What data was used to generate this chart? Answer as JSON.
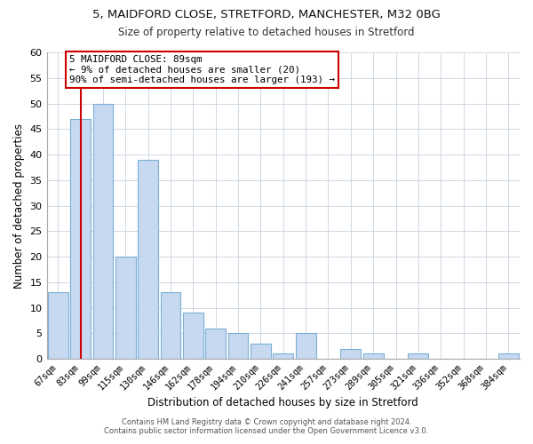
{
  "title1": "5, MAIDFORD CLOSE, STRETFORD, MANCHESTER, M32 0BG",
  "title2": "Size of property relative to detached houses in Stretford",
  "xlabel": "Distribution of detached houses by size in Stretford",
  "ylabel": "Number of detached properties",
  "bar_labels": [
    "67sqm",
    "83sqm",
    "99sqm",
    "115sqm",
    "130sqm",
    "146sqm",
    "162sqm",
    "178sqm",
    "194sqm",
    "210sqm",
    "226sqm",
    "241sqm",
    "257sqm",
    "273sqm",
    "289sqm",
    "305sqm",
    "321sqm",
    "336sqm",
    "352sqm",
    "368sqm",
    "384sqm"
  ],
  "bar_values": [
    13,
    47,
    50,
    20,
    39,
    13,
    9,
    6,
    5,
    3,
    1,
    5,
    0,
    2,
    1,
    0,
    1,
    0,
    0,
    0,
    1
  ],
  "bar_color": "#c6d9f0",
  "bar_edge_color": "#7bafd4",
  "vline_x": 1,
  "vline_color": "#cc0000",
  "ylim": [
    0,
    60
  ],
  "yticks": [
    0,
    5,
    10,
    15,
    20,
    25,
    30,
    35,
    40,
    45,
    50,
    55,
    60
  ],
  "annotation_line1": "5 MAIDFORD CLOSE: 89sqm",
  "annotation_line2": "← 9% of detached houses are smaller (20)",
  "annotation_line3": "90% of semi-detached houses are larger (193) →",
  "annotation_box_color": "#ffffff",
  "annotation_box_edge": "#cc0000",
  "footer1": "Contains HM Land Registry data © Crown copyright and database right 2024.",
  "footer2": "Contains public sector information licensed under the Open Government Licence v3.0."
}
